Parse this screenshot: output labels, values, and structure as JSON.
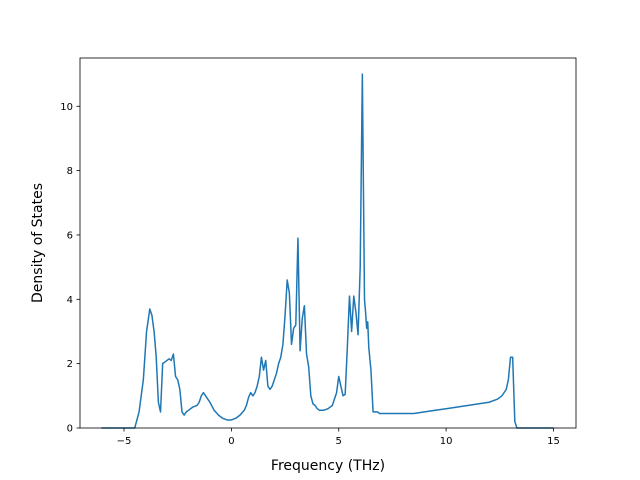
{
  "chart_data": {
    "type": "line",
    "title": "",
    "xlabel": "Frequency (THz)",
    "ylabel": "Density of States",
    "xlim": [
      -7.05,
      16.05
    ],
    "ylim": [
      0,
      11.5
    ],
    "xticks": [
      -5,
      0,
      5,
      10,
      15
    ],
    "xtick_labels": [
      "−5",
      "0",
      "5",
      "10",
      "15"
    ],
    "yticks": [
      0,
      2,
      4,
      6,
      8,
      10
    ],
    "ytick_labels": [
      "0",
      "2",
      "4",
      "6",
      "8",
      "10"
    ],
    "grid": false,
    "line_color": "#1f77b4",
    "series": [
      {
        "x": [
          -6.05,
          -4.8,
          -4.5,
          -4.3,
          -4.1,
          -3.95,
          -3.8,
          -3.7,
          -3.6,
          -3.5,
          -3.4,
          -3.3,
          -3.2,
          -3.1,
          -3.0,
          -2.9,
          -2.8,
          -2.7,
          -2.6,
          -2.5,
          -2.4,
          -2.3,
          -2.2,
          -2.1,
          -2.0,
          -1.8,
          -1.6,
          -1.5,
          -1.4,
          -1.3,
          -1.2,
          -1.1,
          -1.0,
          -0.8,
          -0.6,
          -0.4,
          -0.2,
          0.0,
          0.2,
          0.4,
          0.6,
          0.7,
          0.8,
          0.9,
          1.0,
          1.1,
          1.2,
          1.3,
          1.4,
          1.5,
          1.6,
          1.7,
          1.8,
          1.9,
          2.0,
          2.1,
          2.2,
          2.3,
          2.4,
          2.5,
          2.6,
          2.7,
          2.8,
          2.9,
          3.0,
          3.1,
          3.2,
          3.3,
          3.35,
          3.4,
          3.5,
          3.6,
          3.7,
          3.8,
          3.9,
          4.0,
          4.1,
          4.2,
          4.3,
          4.5,
          4.7,
          4.9,
          5.0,
          5.1,
          5.2,
          5.3,
          5.4,
          5.5,
          5.6,
          5.7,
          5.8,
          5.9,
          6.0,
          6.1,
          6.2,
          6.25,
          6.3,
          6.35,
          6.4,
          6.5,
          6.6,
          6.7,
          6.8,
          6.9,
          7.0,
          7.2,
          7.5,
          8.0,
          8.5,
          9.0,
          9.5,
          10.0,
          10.5,
          11.0,
          11.5,
          12.0,
          12.2,
          12.4,
          12.6,
          12.7,
          12.8,
          12.9,
          13.0,
          13.1,
          13.2,
          13.3,
          13.5,
          15.0
        ],
        "y": [
          0,
          0,
          0,
          0.5,
          1.5,
          3.0,
          3.7,
          3.5,
          3.0,
          2.2,
          0.8,
          0.5,
          2.0,
          2.05,
          2.1,
          2.15,
          2.1,
          2.3,
          1.6,
          1.5,
          1.2,
          0.5,
          0.4,
          0.5,
          0.55,
          0.65,
          0.7,
          0.8,
          1.0,
          1.1,
          1.0,
          0.9,
          0.8,
          0.55,
          0.4,
          0.3,
          0.25,
          0.25,
          0.3,
          0.4,
          0.55,
          0.7,
          0.95,
          1.1,
          1.0,
          1.1,
          1.3,
          1.6,
          2.2,
          1.8,
          2.1,
          1.3,
          1.2,
          1.3,
          1.5,
          1.7,
          2.0,
          2.2,
          2.6,
          3.5,
          4.6,
          4.2,
          2.6,
          3.1,
          3.2,
          5.9,
          2.4,
          3.4,
          3.6,
          3.8,
          2.3,
          1.9,
          1.0,
          0.75,
          0.7,
          0.6,
          0.55,
          0.55,
          0.55,
          0.6,
          0.7,
          1.1,
          1.6,
          1.3,
          1.0,
          1.05,
          2.5,
          4.1,
          3.0,
          4.1,
          3.6,
          2.9,
          5.0,
          11.0,
          4.0,
          3.6,
          3.1,
          3.3,
          2.5,
          1.8,
          0.5,
          0.5,
          0.5,
          0.45,
          0.45,
          0.45,
          0.45,
          0.45,
          0.45,
          0.5,
          0.55,
          0.6,
          0.65,
          0.7,
          0.75,
          0.8,
          0.85,
          0.9,
          1.0,
          1.1,
          1.2,
          1.5,
          2.2,
          2.2,
          0.2,
          0,
          0,
          0
        ]
      }
    ]
  }
}
